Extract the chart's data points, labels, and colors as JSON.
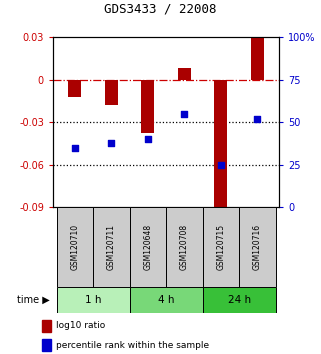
{
  "title": "GDS3433 / 22008",
  "samples": [
    "GSM120710",
    "GSM120711",
    "GSM120648",
    "GSM120708",
    "GSM120715",
    "GSM120716"
  ],
  "groups": [
    {
      "label": "1 h",
      "indices": [
        0,
        1
      ],
      "color": "#b8f0b8"
    },
    {
      "label": "4 h",
      "indices": [
        2,
        3
      ],
      "color": "#78d878"
    },
    {
      "label": "24 h",
      "indices": [
        4,
        5
      ],
      "color": "#38c038"
    }
  ],
  "log10_ratio": [
    -0.012,
    -0.018,
    -0.038,
    0.008,
    -0.09,
    0.03
  ],
  "percentile_rank": [
    35,
    38,
    40,
    55,
    25,
    52
  ],
  "ylim_left": [
    -0.09,
    0.03
  ],
  "ylim_right": [
    0,
    100
  ],
  "bar_color": "#aa0000",
  "dot_color": "#0000cc",
  "bar_width": 0.35,
  "hline_zero_color": "#cc0000",
  "hline_dotted_color": "#000000",
  "hlines_dotted": [
    -0.03,
    -0.06
  ],
  "yticks_left": [
    0.03,
    0,
    -0.03,
    -0.06,
    -0.09
  ],
  "ytick_labels_left": [
    "0.03",
    "0",
    "-0.03",
    "-0.06",
    "-0.09"
  ],
  "yticks_right": [
    100,
    75,
    50,
    25,
    0
  ],
  "ytick_labels_right": [
    "100%",
    "75",
    "50",
    "25",
    "0"
  ],
  "background_color": "#ffffff",
  "label_log10": "log10 ratio",
  "label_percentile": "percentile rank within the sample"
}
